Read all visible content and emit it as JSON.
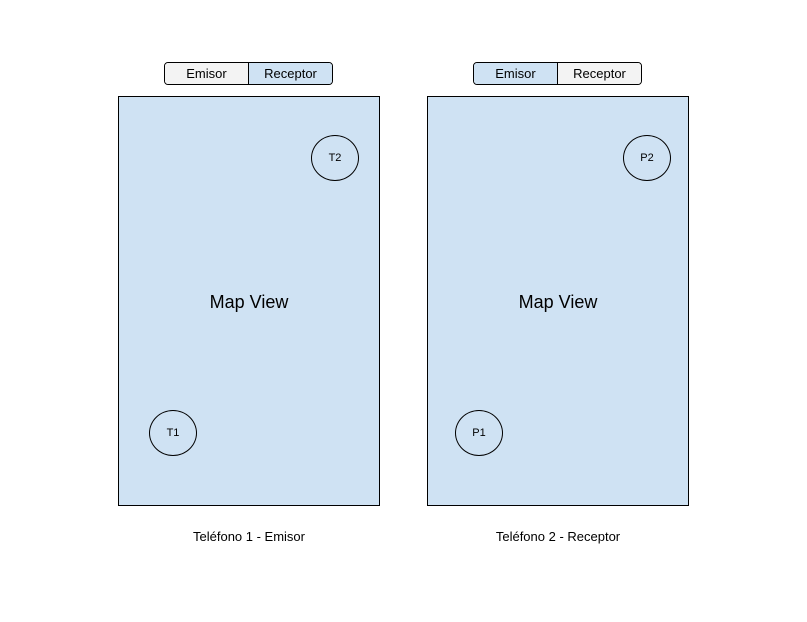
{
  "phones": [
    {
      "tabs": [
        {
          "label": "Emisor",
          "selected": false
        },
        {
          "label": "Receptor",
          "selected": true
        }
      ],
      "map_label": "Map View",
      "markers": {
        "top_right": "T2",
        "bottom_left": "T1"
      },
      "caption": "Teléfono 1 - Emisor"
    },
    {
      "tabs": [
        {
          "label": "Emisor",
          "selected": true
        },
        {
          "label": "Receptor",
          "selected": false
        }
      ],
      "map_label": "Map View",
      "markers": {
        "top_right": "P2",
        "bottom_left": "P1"
      },
      "caption": "Teléfono 2 - Receptor"
    }
  ],
  "colors": {
    "map_background": "#cfe2f3",
    "selected_tab": "#cfe2f3",
    "unselected_tab": "#f3f3f3"
  }
}
